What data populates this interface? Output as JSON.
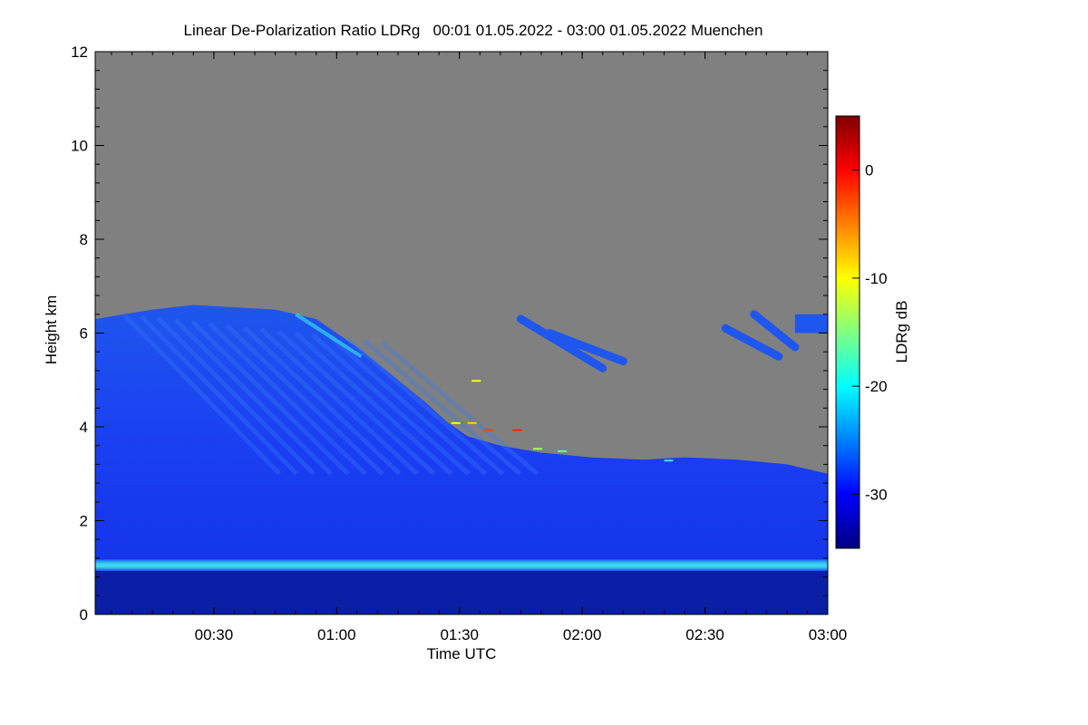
{
  "chart_data": {
    "type": "heatmap",
    "title": "Linear De-Polarization Ratio LDRg   00:01 01.05.2022 - 03:00 01.05.2022 Muenchen",
    "xlabel": "Time UTC",
    "ylabel": "Height km",
    "xlim_minutes": [
      1,
      180
    ],
    "ylim_km": [
      0,
      12
    ],
    "x_ticks": [
      {
        "label": "00:30",
        "minutes": 30
      },
      {
        "label": "01:00",
        "minutes": 60
      },
      {
        "label": "01:30",
        "minutes": 90
      },
      {
        "label": "02:00",
        "minutes": 120
      },
      {
        "label": "02:30",
        "minutes": 150
      },
      {
        "label": "03:00",
        "minutes": 180
      }
    ],
    "y_ticks": [
      {
        "label": "0",
        "km": 0
      },
      {
        "label": "2",
        "km": 2
      },
      {
        "label": "4",
        "km": 4
      },
      {
        "label": "6",
        "km": 6
      },
      {
        "label": "8",
        "km": 8
      },
      {
        "label": "10",
        "km": 10
      },
      {
        "label": "12",
        "km": 12
      }
    ],
    "colorbar": {
      "label": "LDRg dB",
      "range_db": [
        -35,
        5
      ],
      "ticks": [
        {
          "label": "0",
          "db": 0
        },
        {
          "label": "-10",
          "db": -10
        },
        {
          "label": "-20",
          "db": -20
        },
        {
          "label": "-30",
          "db": -30
        }
      ],
      "colors": [
        "#000080",
        "#0000ff",
        "#0080ff",
        "#00ffff",
        "#80ff80",
        "#ffff00",
        "#ff8000",
        "#ff0000",
        "#800000"
      ]
    },
    "no_data_color": "#808080",
    "features": {
      "cloud_top_km": [
        {
          "minutes": 1,
          "km": 6.3
        },
        {
          "minutes": 15,
          "km": 6.5
        },
        {
          "minutes": 25,
          "km": 6.6
        },
        {
          "minutes": 45,
          "km": 6.5
        },
        {
          "minutes": 55,
          "km": 6.3
        },
        {
          "minutes": 65,
          "km": 5.7
        },
        {
          "minutes": 75,
          "km": 5.0
        },
        {
          "minutes": 82,
          "km": 4.5
        },
        {
          "minutes": 87,
          "km": 4.1
        },
        {
          "minutes": 92,
          "km": 3.8
        },
        {
          "minutes": 100,
          "km": 3.6
        },
        {
          "minutes": 110,
          "km": 3.45
        },
        {
          "minutes": 122,
          "km": 3.35
        },
        {
          "minutes": 135,
          "km": 3.3
        },
        {
          "minutes": 145,
          "km": 3.35
        },
        {
          "minutes": 158,
          "km": 3.3
        },
        {
          "minutes": 170,
          "km": 3.2
        },
        {
          "minutes": 180,
          "km": 3.0
        }
      ],
      "bright_band_km": 1.05,
      "bright_band_db": -22,
      "below_band_db": -34,
      "main_cloud_db": -29
    }
  }
}
